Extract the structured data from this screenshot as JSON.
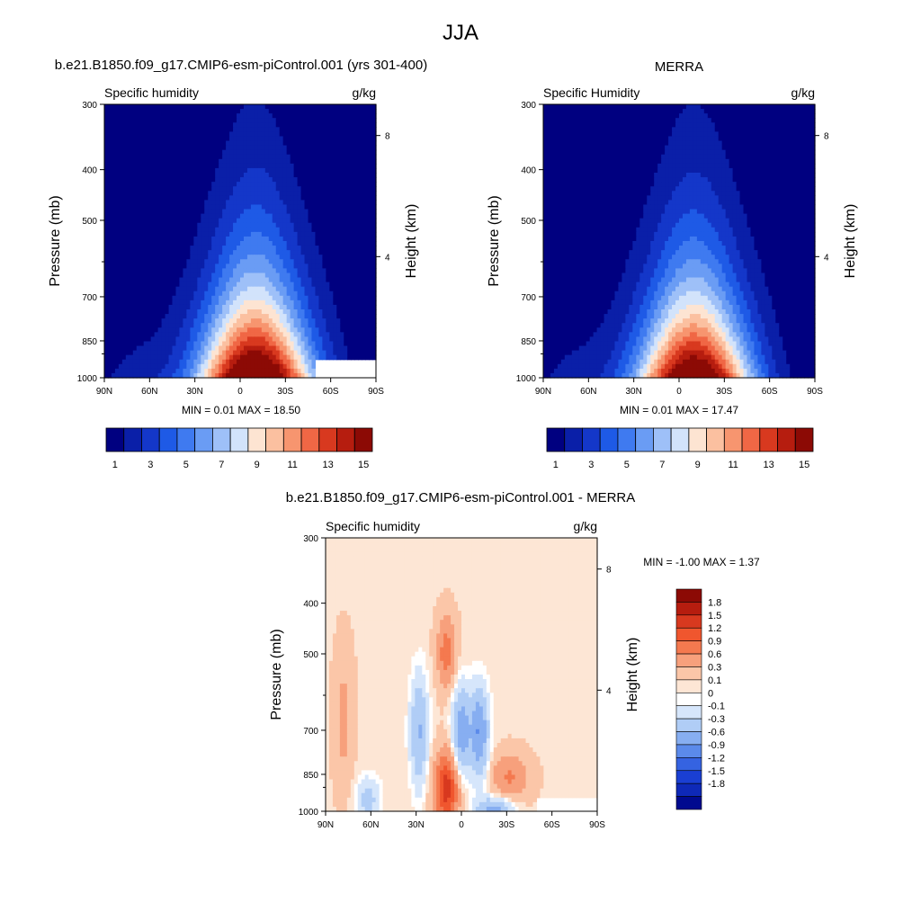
{
  "figure_title": "JJA",
  "chart_data": [
    {
      "type": "heatmap",
      "title": "b.e21.B1850.f09_g17.CMIP6-esm-piControl.001 (yrs 301-400)",
      "left_label": "Specific humidity",
      "right_label": "g/kg",
      "xlabel": "",
      "ylabel": "Pressure (mb)",
      "ylabel_right": "Height (km)",
      "x_ticks": [
        "90N",
        "60N",
        "30N",
        "0",
        "30S",
        "60S",
        "90S"
      ],
      "y_ticks": [
        "300",
        "400",
        "500",
        "700",
        "850",
        "1000"
      ],
      "y_right_ticks": [
        "8",
        "4"
      ],
      "min_label": "MIN =",
      "min_value": "0.01",
      "max_label": "MAX =",
      "max_value": "18.50",
      "peak_value": 18.5,
      "peak_latitude": 10,
      "colorbar_labels": [
        "1",
        "3",
        "5",
        "7",
        "9",
        "11",
        "13",
        "15"
      ]
    },
    {
      "type": "heatmap",
      "title": "MERRA",
      "left_label": "Specific Humidity",
      "right_label": "g/kg",
      "xlabel": "",
      "ylabel": "Pressure (mb)",
      "ylabel_right": "Height (km)",
      "x_ticks": [
        "90N",
        "60N",
        "30N",
        "0",
        "30S",
        "60S",
        "90S"
      ],
      "y_ticks": [
        "300",
        "400",
        "500",
        "700",
        "850",
        "1000"
      ],
      "y_right_ticks": [
        "8",
        "4"
      ],
      "min_label": "MIN =",
      "min_value": "0.01",
      "max_label": "MAX =",
      "max_value": "17.47",
      "peak_value": 17.47,
      "peak_latitude": 10,
      "colorbar_labels": [
        "1",
        "3",
        "5",
        "7",
        "9",
        "11",
        "13",
        "15"
      ]
    },
    {
      "type": "heatmap",
      "title": "b.e21.B1850.f09_g17.CMIP6-esm-piControl.001 - MERRA",
      "left_label": "Specific humidity",
      "right_label": "g/kg",
      "xlabel": "",
      "ylabel": "Pressure (mb)",
      "ylabel_right": "Height (km)",
      "x_ticks": [
        "90N",
        "60N",
        "30N",
        "0",
        "30S",
        "60S",
        "90S"
      ],
      "y_ticks": [
        "300",
        "400",
        "500",
        "700",
        "850",
        "1000"
      ],
      "y_right_ticks": [
        "8",
        "4"
      ],
      "min_label": "MIN =",
      "min_value": "-1.00",
      "max_label": "MAX =",
      "max_value": "1.37",
      "colorbar_labels": [
        "1.8",
        "1.5",
        "1.2",
        "0.9",
        "0.6",
        "0.3",
        "0.1",
        "0",
        "-0.1",
        "-0.3",
        "-0.6",
        "-0.9",
        "-1.2",
        "-1.5",
        "-1.8"
      ]
    }
  ],
  "colors": {
    "abs_scale": [
      "#000080",
      "#0a1fa8",
      "#1437c9",
      "#1e5ae6",
      "#3f7af0",
      "#6a9cf4",
      "#9ec0f8",
      "#d2e3fb",
      "#fde4d2",
      "#fbc0a0",
      "#f7956f",
      "#f06745",
      "#d8391f",
      "#b61d0f",
      "#8c0a05"
    ],
    "diff_scale": [
      "#8c0a05",
      "#b61d0f",
      "#d8391f",
      "#f0562e",
      "#f4794f",
      "#f7a07c",
      "#fbc6a8",
      "#fde6d5",
      "#ffffff",
      "#d6e6fb",
      "#b0cdf6",
      "#87aef1",
      "#5b8aea",
      "#3563e1",
      "#1a3fd3",
      "#0e29b8",
      "#000a8f"
    ]
  }
}
